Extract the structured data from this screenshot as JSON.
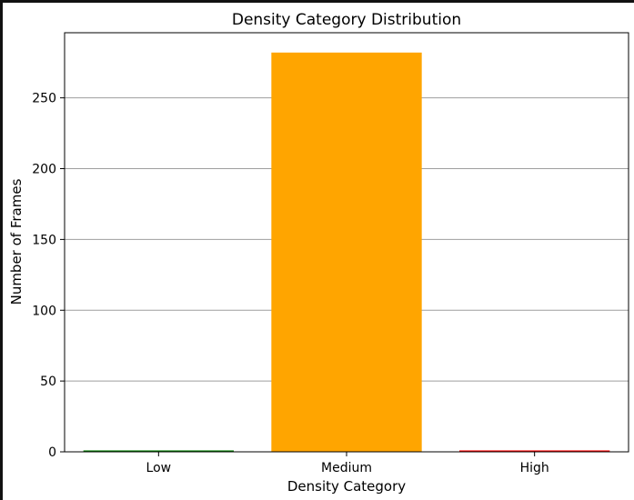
{
  "chart_data": {
    "type": "bar",
    "title": "Density Category Distribution",
    "xlabel": "Density Category",
    "ylabel": "Number of Frames",
    "categories": [
      "Low",
      "Medium",
      "High"
    ],
    "values": [
      1,
      282,
      1
    ],
    "colors": [
      "#008000",
      "#FFA500",
      "#FF0000"
    ],
    "ylim": [
      0,
      296
    ],
    "yticks": [
      0,
      50,
      100,
      150,
      200,
      250
    ],
    "ytick_labels": [
      "0",
      "50",
      "100",
      "150",
      "200",
      "250"
    ],
    "grid": true,
    "grid_axis": "y"
  }
}
